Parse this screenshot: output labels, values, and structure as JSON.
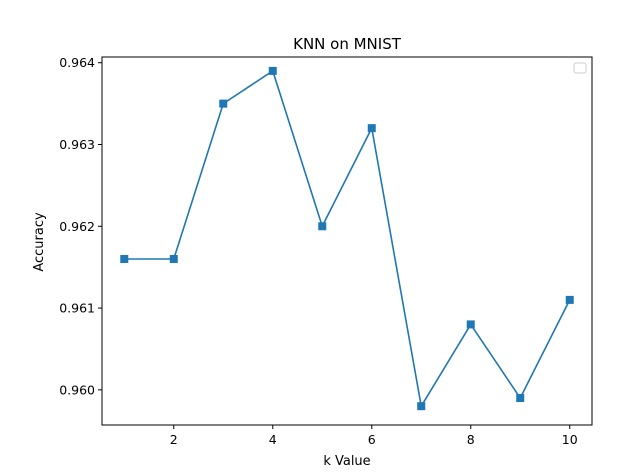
{
  "chart_data": {
    "type": "line",
    "title": "KNN on MNIST",
    "xlabel": "k Value",
    "ylabel": "Accuracy",
    "x": [
      1,
      2,
      3,
      4,
      5,
      6,
      7,
      8,
      9,
      10
    ],
    "series": [
      {
        "values": [
          0.9616,
          0.9616,
          0.9635,
          0.9639,
          0.962,
          0.9632,
          0.9598,
          0.9608,
          0.9599,
          0.9611
        ],
        "color": "#1f77b4",
        "marker": "square"
      }
    ],
    "xlim": [
      0.55,
      10.45
    ],
    "ylim": [
      0.95957,
      0.96407
    ],
    "xticks": [
      2,
      4,
      6,
      8,
      10
    ],
    "xtick_labels": [
      "2",
      "4",
      "6",
      "8",
      "10"
    ],
    "yticks": [
      0.96,
      0.961,
      0.962,
      0.963,
      0.964
    ],
    "ytick_labels": [
      "0.960",
      "0.961",
      "0.962",
      "0.963",
      "0.964"
    ],
    "grid": false,
    "legend": {
      "entries": [],
      "placement": "top-right"
    }
  }
}
